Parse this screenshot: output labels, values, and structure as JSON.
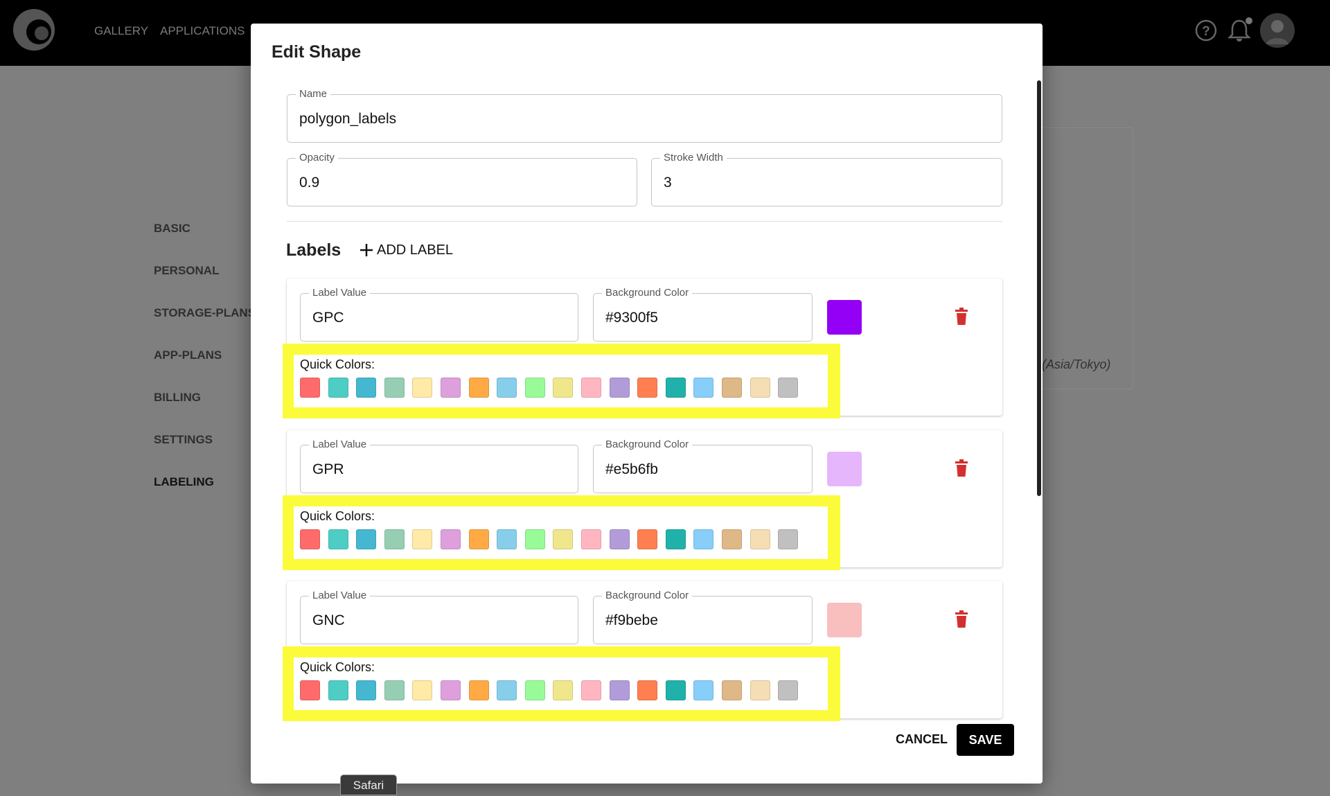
{
  "nav": {
    "items": [
      "GALLERY",
      "APPLICATIONS"
    ]
  },
  "sidebar": {
    "items": [
      "BASIC",
      "PERSONAL",
      "STORAGE-PLANS",
      "APP-PLANS",
      "BILLING",
      "SETTINGS",
      "LABELING"
    ]
  },
  "background": {
    "timezone_text": "/ (Asia/Tokyo)"
  },
  "dialog": {
    "title": "Edit Shape",
    "fields": {
      "name": {
        "label": "Name",
        "value": "polygon_labels"
      },
      "opacity": {
        "label": "Opacity",
        "value": "0.9"
      },
      "stroke_width": {
        "label": "Stroke Width",
        "value": "3"
      }
    },
    "labels_heading": "Labels",
    "add_label": "ADD LABEL",
    "label_value_field": "Label Value",
    "background_field": "Background Color",
    "quick_colors_label": "Quick Colors:",
    "quick_colors": [
      "#ff6b6b",
      "#4ecdc4",
      "#45b7d1",
      "#96ceb4",
      "#ffeaa7",
      "#dda0dd",
      "#ffaa44",
      "#87ceeb",
      "#98fb98",
      "#f0e68c",
      "#ffb6c1",
      "#b19cd9",
      "#ff7f50",
      "#20b2aa",
      "#87cefa",
      "#deb887",
      "#f5deb3",
      "#c0c0c0"
    ],
    "labels": [
      {
        "value": "GPC",
        "background": "#9300f5"
      },
      {
        "value": "GPR",
        "background": "#e5b6fb"
      },
      {
        "value": "GNC",
        "background": "#f9bebe"
      }
    ],
    "cancel": "CANCEL",
    "save": "SAVE"
  },
  "tooltip": "Safari"
}
